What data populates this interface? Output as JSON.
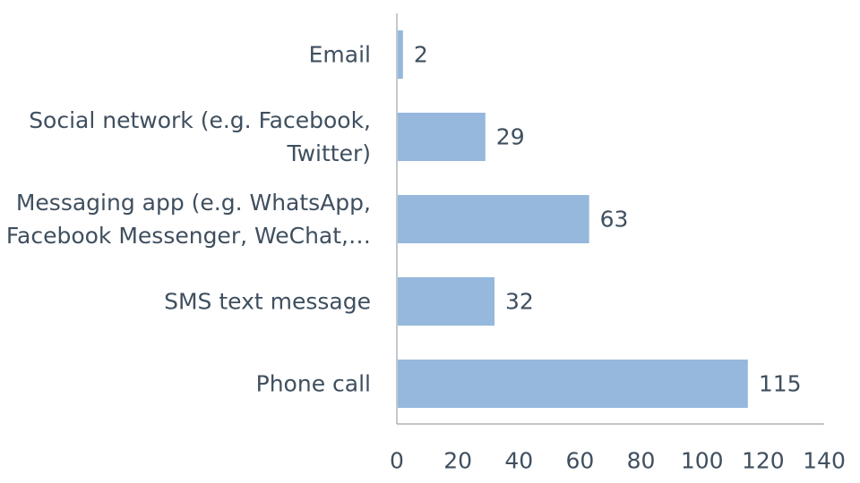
{
  "chart_data": {
    "type": "bar",
    "orientation": "horizontal",
    "categories": [
      [
        "Email"
      ],
      [
        "Social network (e.g. Facebook,",
        "Twitter)"
      ],
      [
        "Messaging app (e.g. WhatsApp,",
        "Facebook Messenger, WeChat,…"
      ],
      [
        "SMS text message"
      ],
      [
        "Phone call"
      ]
    ],
    "values": [
      2,
      29,
      63,
      32,
      115
    ],
    "data_labels": [
      "2",
      "29",
      "63",
      "32",
      "115"
    ],
    "xlim": [
      0,
      140
    ],
    "xticks": [
      0,
      20,
      40,
      60,
      80,
      100,
      120,
      140
    ],
    "xtick_labels": [
      "0",
      "20",
      "40",
      "60",
      "80",
      "100",
      "120",
      "140"
    ],
    "grid": false,
    "legend": "none",
    "colors": {
      "bar": "#95b8dc",
      "axis": "#9aa3ab",
      "text": "#3f4f5f"
    }
  }
}
